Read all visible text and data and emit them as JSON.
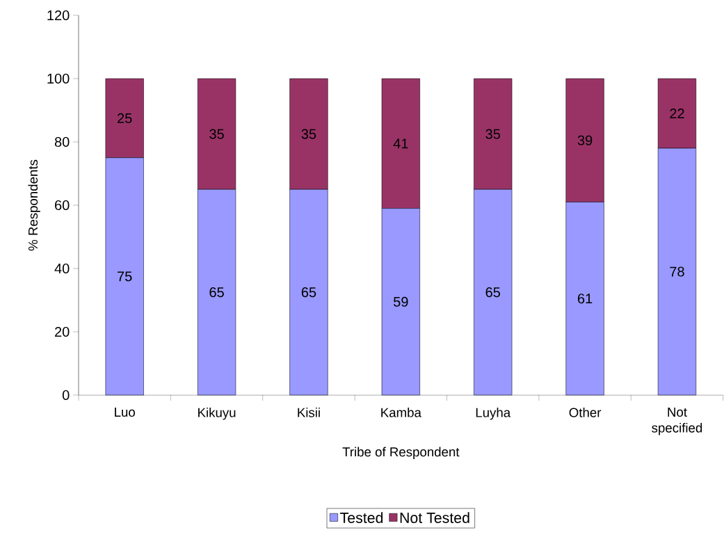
{
  "chart_data": {
    "type": "bar",
    "stacked": true,
    "categories": [
      "Luo",
      "Kikuyu",
      "Kisii",
      "Kamba",
      "Luyha",
      "Other",
      "Not specified"
    ],
    "series": [
      {
        "name": "Tested",
        "color": "#9999ff",
        "values": [
          75,
          65,
          65,
          59,
          65,
          61,
          78
        ]
      },
      {
        "name": "Not Tested",
        "color": "#993366",
        "values": [
          25,
          35,
          35,
          41,
          35,
          39,
          22
        ]
      }
    ],
    "xlabel": "Tribe of Respondent",
    "ylabel": "% Respondents",
    "ylim": [
      0,
      120
    ],
    "yticks": [
      0,
      20,
      40,
      60,
      80,
      100,
      120
    ],
    "data_labels": true,
    "legend": "bottom",
    "grid": false
  }
}
